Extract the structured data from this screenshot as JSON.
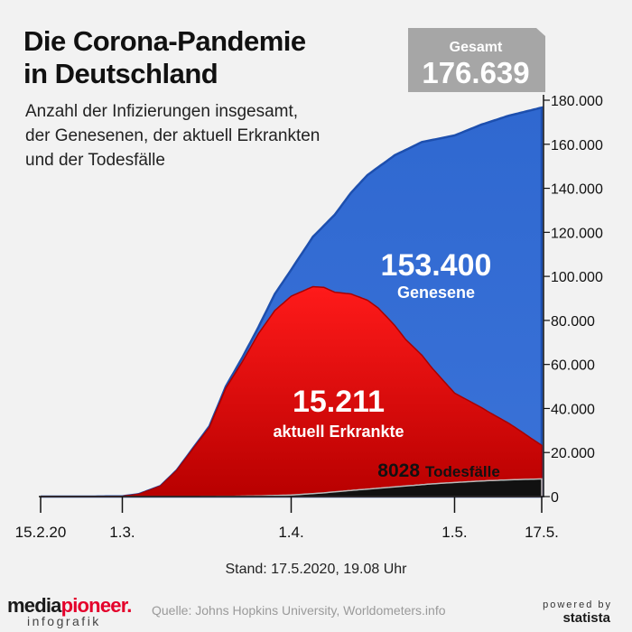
{
  "title": "Die Corona-Pandemie\nin Deutschland",
  "subtitle": "Anzahl der Infizierungen insgesamt,\nder Genesenen, der aktuell Erkrankten\nund der Todesfälle",
  "total_box": {
    "label": "Gesamt",
    "value": "176.639"
  },
  "annotations": {
    "genesene_value": "153.400",
    "genesene_label": "Genesene",
    "erkrankte_value": "15.211",
    "erkrankte_label": "aktuell Erkrankte",
    "tote_value": "8028",
    "tote_label": "Todesfälle"
  },
  "stand": "Stand: 17.5.2020, 19.08 Uhr",
  "source": "Quelle: Johns Hopkins University, Worldometers.info",
  "logo": {
    "part1": "media",
    "part2": "pioneer",
    "dot": ".",
    "sub": "infografik"
  },
  "statista": {
    "powered": "powered by",
    "name": "statista"
  },
  "colors": {
    "total": "#2a62c9",
    "recovered": "#3c72d6",
    "active": "#e3000f",
    "deaths": "#111111",
    "box": "#a6a6a6"
  },
  "chart_data": {
    "type": "area",
    "x_tick_labels": [
      "15.2.20",
      "1.3.",
      "1.4.",
      "1.5.",
      "17.5."
    ],
    "x_tick_days": [
      0,
      15,
      46,
      76,
      92
    ],
    "y_tick_labels": [
      "0",
      "20.000",
      "40.000",
      "60.000",
      "80.000",
      "100.000",
      "120.000",
      "140.000",
      "160.000",
      "180.000"
    ],
    "ylim": [
      0,
      180000
    ],
    "yaxis_position": "right",
    "series": [
      {
        "name": "Gesamt",
        "days": [
          0,
          10,
          15,
          18,
          22,
          25,
          28,
          31,
          34,
          37,
          40,
          43,
          46,
          50,
          54,
          57,
          60,
          65,
          70,
          76,
          81,
          86,
          92
        ],
        "values": [
          16,
          16,
          130,
          1100,
          4800,
          12000,
          22000,
          32000,
          50000,
          63000,
          77000,
          92000,
          103000,
          118000,
          128000,
          138000,
          146000,
          155000,
          161000,
          164000,
          169000,
          173000,
          176639
        ]
      },
      {
        "name": "Genesene",
        "days": [
          0,
          15,
          22,
          28,
          34,
          40,
          46,
          52,
          57,
          62,
          67,
          72,
          76,
          82,
          87,
          92
        ],
        "values": [
          0,
          16,
          50,
          200,
          800,
          3000,
          12000,
          28000,
          46000,
          64000,
          86000,
          104000,
          117000,
          131000,
          142000,
          153400
        ]
      },
      {
        "name": "Todesfälle",
        "days": [
          0,
          28,
          34,
          40,
          46,
          52,
          57,
          62,
          67,
          72,
          76,
          81,
          86,
          92
        ],
        "values": [
          0,
          0,
          90,
          300,
          700,
          1700,
          2800,
          3800,
          4800,
          5800,
          6400,
          7100,
          7600,
          8028
        ]
      }
    ]
  }
}
